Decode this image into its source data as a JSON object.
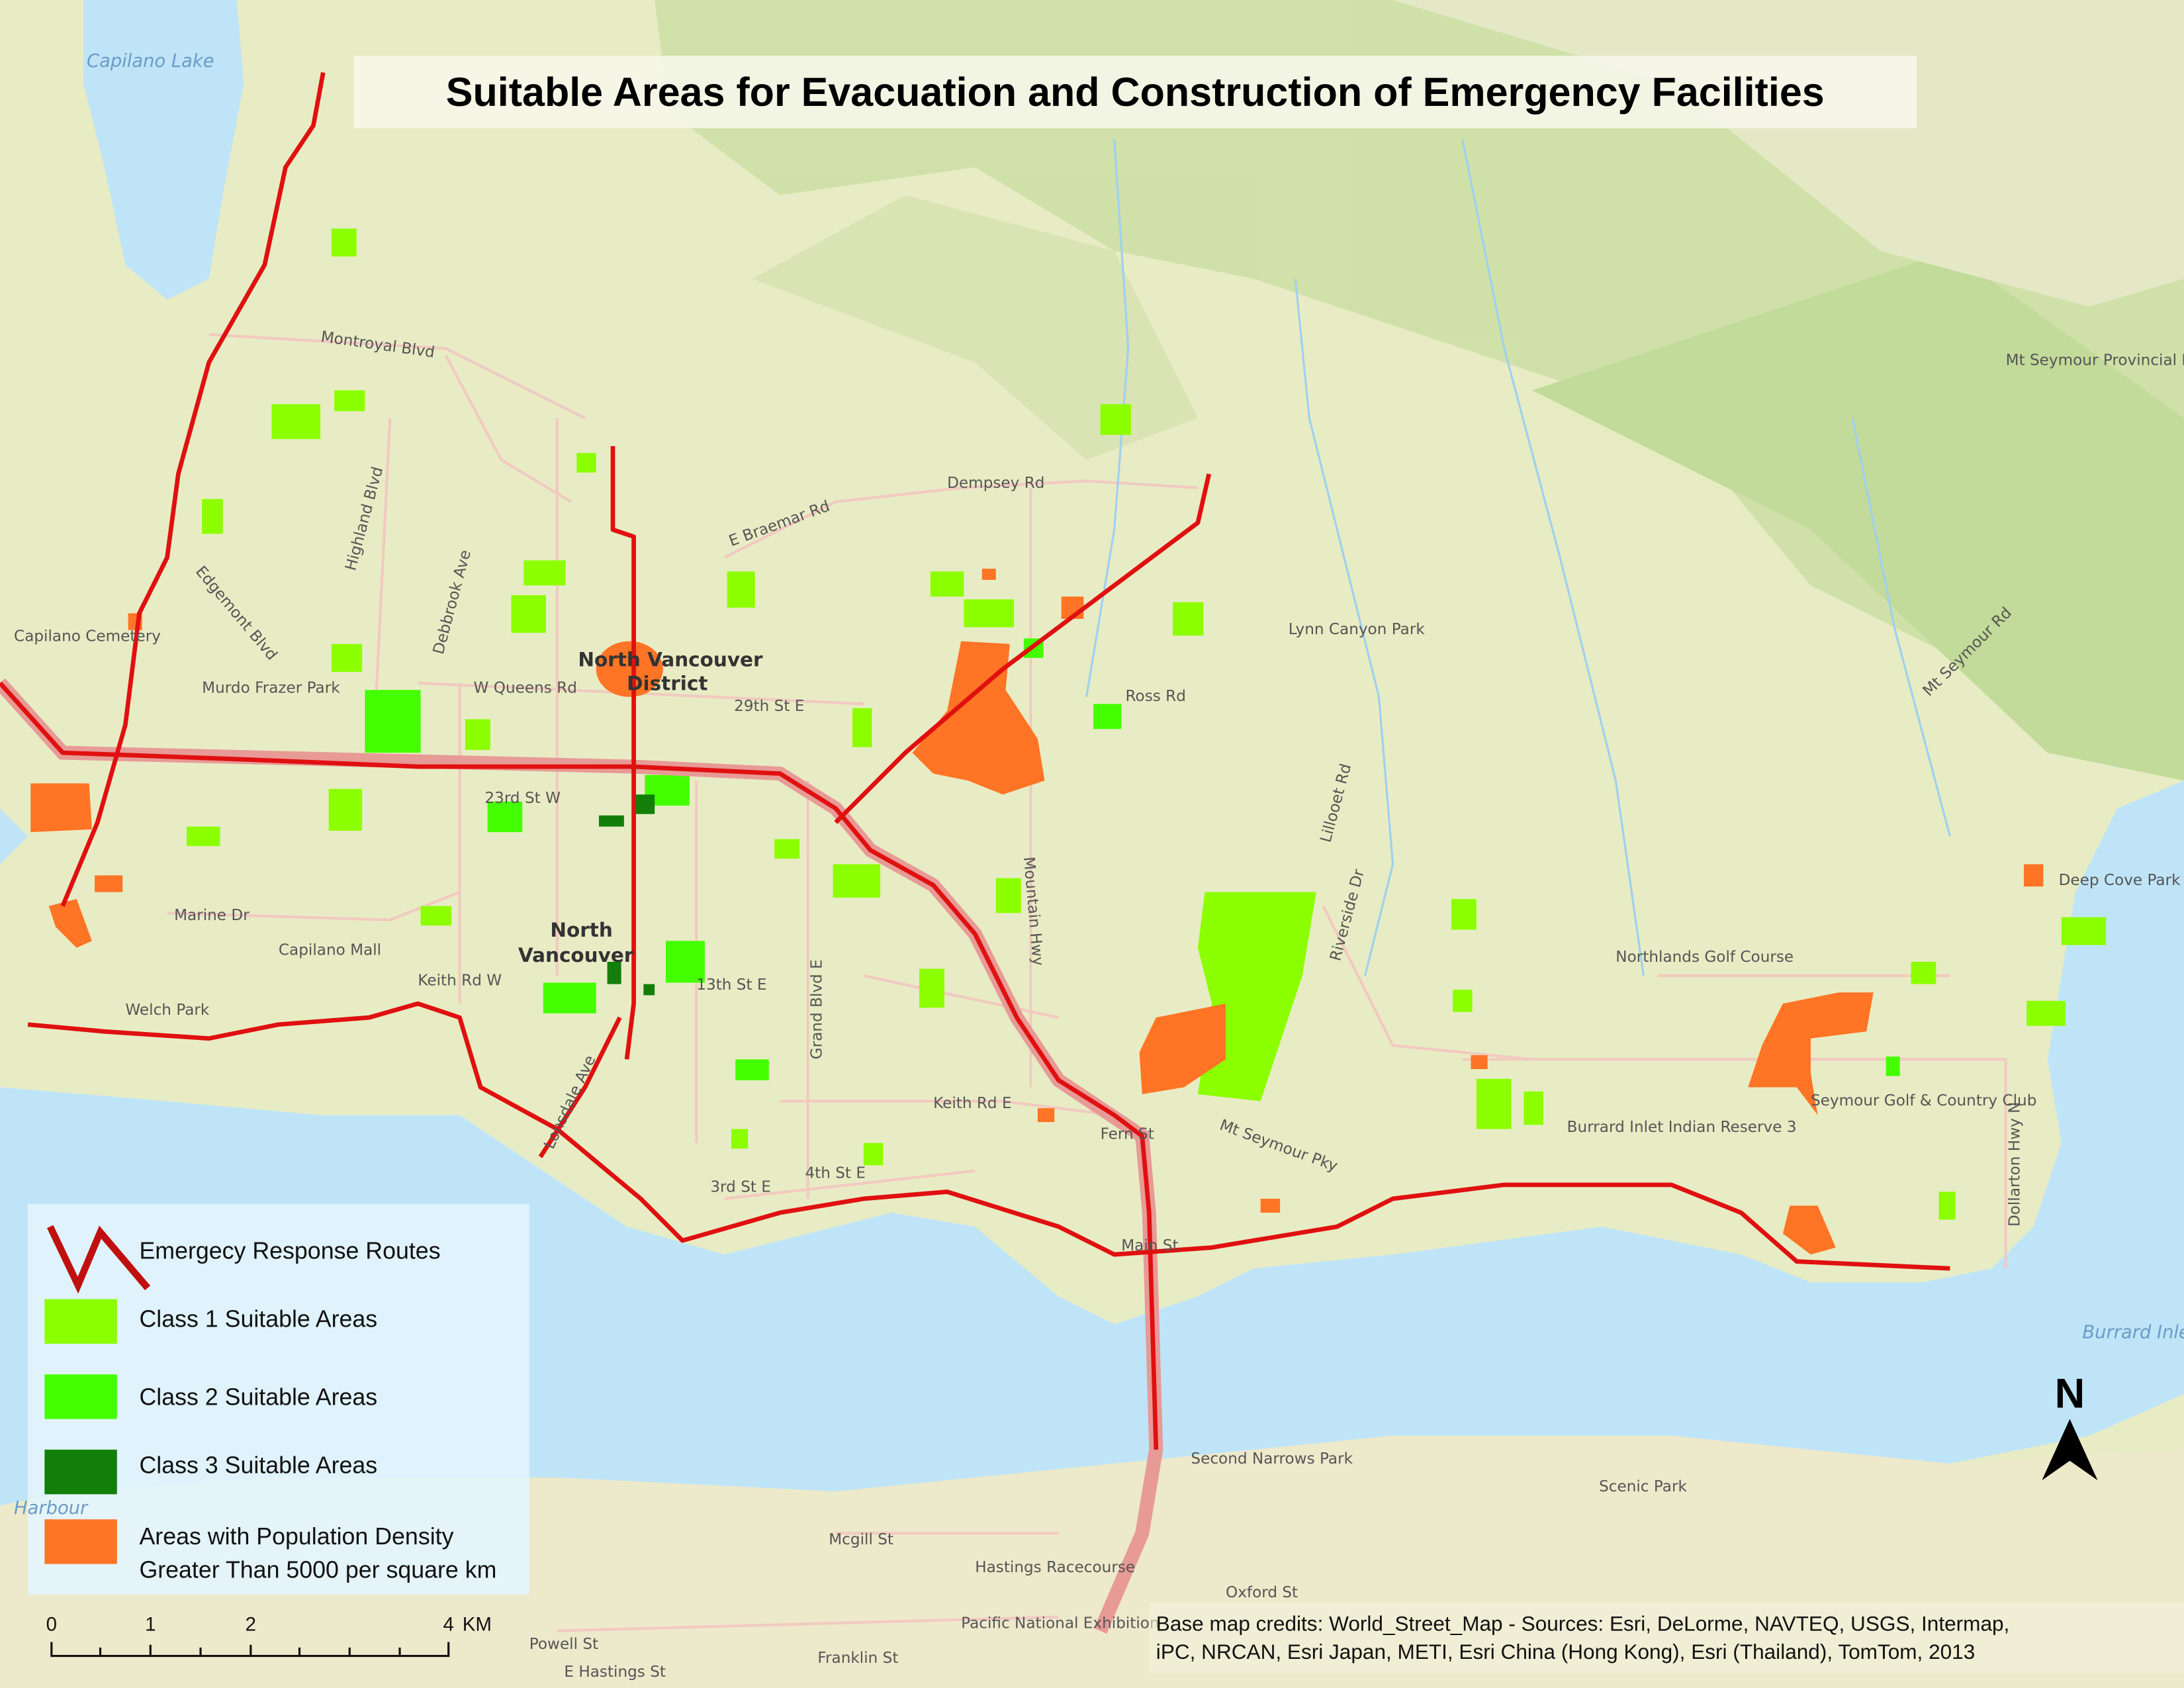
{
  "title": "Suitable Areas for Evacuation and Construction of Emergency Facilities",
  "colors": {
    "route": "#e01010",
    "class1": "#8cff00",
    "class2": "#44ff00",
    "class3": "#137f0a",
    "population": "#ff7425",
    "water": "#bfe4f7",
    "land": "#e8ecc4",
    "forest": "#c6dea0"
  },
  "legend": {
    "items": [
      {
        "label": "Emergecy Response Routes",
        "symbol": "line",
        "color": "#c00f0f"
      },
      {
        "label": "Class 1 Suitable Areas",
        "symbol": "box",
        "color": "#8cff00"
      },
      {
        "label": "Class 2 Suitable Areas",
        "symbol": "box",
        "color": "#44ff00"
      },
      {
        "label": "Class 3 Suitable Areas",
        "symbol": "box",
        "color": "#137f0a"
      },
      {
        "label": "Areas with Population Density",
        "label2": "Greater Than 5000 per square km",
        "symbol": "box",
        "color": "#ff7425"
      }
    ]
  },
  "scale_bar": {
    "ticks": [
      "0",
      "1",
      "2",
      "4"
    ],
    "unit": "KM"
  },
  "north_arrow": {
    "label": "N",
    "icon": "north-arrow-icon"
  },
  "credits": {
    "line1": "Base map credits: World_Street_Map - Sources: Esri, DeLorme, NAVTEQ, USGS, Intermap,",
    "line2": "iPC, NRCAN, Esri Japan, METI, Esri China (Hong Kong), Esri (Thailand), TomTom, 2013"
  },
  "place_labels": {
    "capilano_lake": "Capilano Lake",
    "north_van_district_1": "North Vancouver",
    "north_van_district_2": "District",
    "north_van_city_1": "North",
    "north_van_city_2": "Vancouver",
    "burrard_inlet": "Burrard Inlet",
    "harbour": "Harbour",
    "mt_seymour_park": "Mt Seymour Provincial Park",
    "lynn_canyon_park": "Lynn Canyon Park",
    "northlands": "Northlands Golf Course",
    "seymour_golf": "Seymour Golf & Country Club",
    "burrard_reserve": "Burrard Inlet Indian Reserve 3",
    "deep_cove": "Deep Cove Park",
    "capilano_cemetery": "Capilano Cemetery",
    "murdo_frazer": "Murdo Frazer Park",
    "capilano_mall": "Capilano Mall",
    "welch_park": "Welch Park",
    "second_narrows": "Second Narrows Park",
    "scenic_park": "Scenic Park",
    "hastings_racecourse": "Hastings Racecourse",
    "pacific_exhibition": "Pacific National Exhibition"
  },
  "street_labels": [
    "Montroyal Blvd",
    "Edgemont Blvd",
    "Highland Blvd",
    "Debbrook Ave",
    "W Queens Rd",
    "29th St E",
    "23rd St W",
    "Marine Dr",
    "Keith Rd W",
    "Keith Rd E",
    "13th St E",
    "3rd St E",
    "4th St E",
    "Dempsey Rd",
    "E Braemar Rd",
    "Ross Rd",
    "Mountain Hwy",
    "Grand Blvd E",
    "Mt Seymour Pky",
    "Mt Seymour Rd",
    "Dollarton Hwy N",
    "Lillooet Rd",
    "Riverside Dr",
    "Mcgill St",
    "E Hastings St",
    "Franklin St",
    "Oxford St",
    "Powell St",
    "Lonsdale Ave",
    "Fern St",
    "Main St"
  ]
}
